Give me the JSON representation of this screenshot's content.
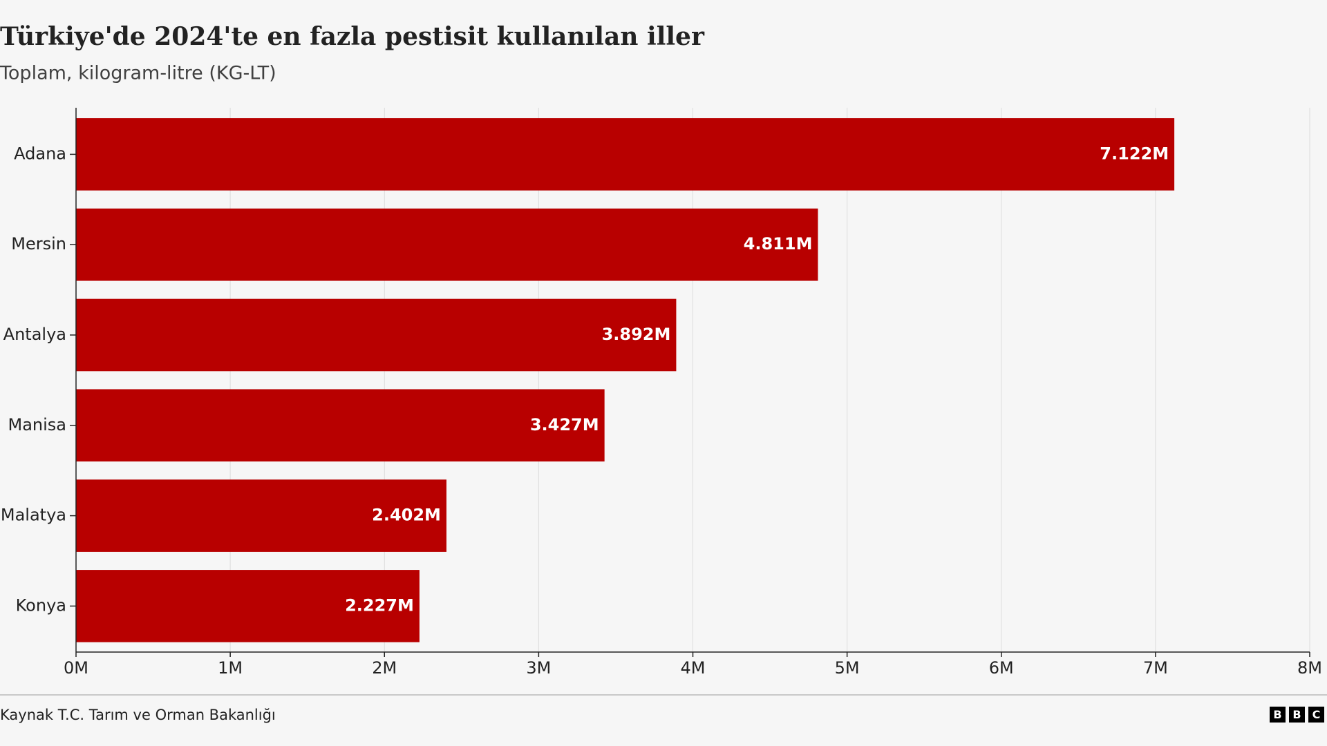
{
  "chart_data": {
    "type": "barh",
    "title": "Türkiye'de 2024'te en fazla pestisit kullanılan iller",
    "subtitle": "Toplam, kilogram-litre (KG-LT)",
    "categories": [
      "Adana",
      "Mersin",
      "Antalya",
      "Manisa",
      "Malatya",
      "Konya"
    ],
    "values": [
      7122000,
      4811000,
      3892000,
      3427000,
      2402000,
      2227000
    ],
    "value_labels": [
      "7.122M",
      "4.811M",
      "3.892M",
      "3.427M",
      "2.402M",
      "2.227M"
    ],
    "color": "#b80000",
    "xlim": [
      0,
      8000000
    ],
    "xticks": [
      {
        "value": 0,
        "label": "0M"
      },
      {
        "value": 1000000,
        "label": "1M"
      },
      {
        "value": 2000000,
        "label": "2M"
      },
      {
        "value": 3000000,
        "label": "3M"
      },
      {
        "value": 4000000,
        "label": "4M"
      },
      {
        "value": 5000000,
        "label": "5M"
      },
      {
        "value": 6000000,
        "label": "6M"
      },
      {
        "value": 7000000,
        "label": "7M"
      },
      {
        "value": 8000000,
        "label": "8M"
      }
    ],
    "grid": true,
    "source": "Kaynak T.C. Tarım ve Orman Bakanlığı",
    "logo": [
      "B",
      "B",
      "C"
    ]
  }
}
